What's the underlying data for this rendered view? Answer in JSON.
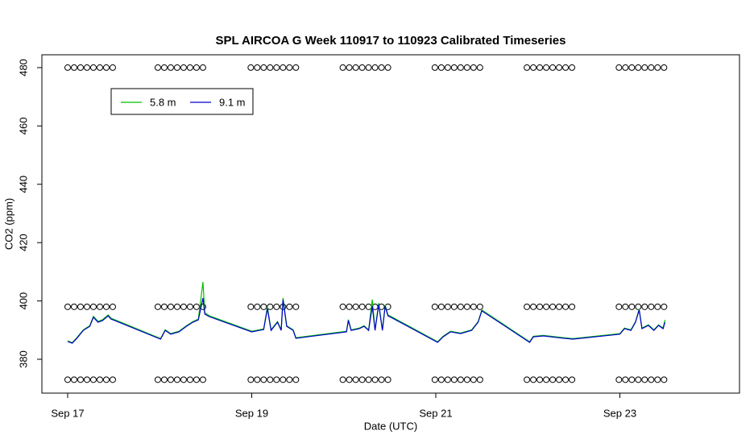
{
  "chart_data": {
    "type": "line",
    "title": "SPL AIRCOA G  Week 110917 to 110923  Calibrated Timeseries",
    "x_label": "Date (UTC)",
    "y_label": "CO2 (ppm)",
    "xlim": [
      16.72,
      24.3
    ],
    "ylim": [
      368.4,
      484.4
    ],
    "xticks": [
      {
        "value": 17,
        "label": "Sep 17"
      },
      {
        "value": 19,
        "label": "Sep 19"
      },
      {
        "value": 21,
        "label": "Sep 21"
      },
      {
        "value": 23,
        "label": "Sep 23"
      }
    ],
    "yticks": [
      380,
      400,
      420,
      440,
      460,
      480
    ],
    "x": [
      17.0,
      17.05,
      17.1,
      17.17,
      17.24,
      17.28,
      17.33,
      17.38,
      17.44,
      17.47,
      17.51,
      18.01,
      18.06,
      18.12,
      18.21,
      18.29,
      18.36,
      18.42,
      18.47,
      18.49,
      18.54,
      19.0,
      19.08,
      19.13,
      19.17,
      19.21,
      19.28,
      19.32,
      19.34,
      19.38,
      19.45,
      19.48,
      20.03,
      20.05,
      20.08,
      20.17,
      20.22,
      20.27,
      20.31,
      20.34,
      20.38,
      20.42,
      20.45,
      20.48,
      20.53,
      21.02,
      21.08,
      21.16,
      21.27,
      21.39,
      21.46,
      21.5,
      22.02,
      22.06,
      22.17,
      22.39,
      22.49,
      23.0,
      23.05,
      23.12,
      23.17,
      23.21,
      23.24,
      23.31,
      23.37,
      23.42,
      23.47,
      23.49
    ],
    "series": [
      {
        "name": "5.8 m",
        "color": "#00c000",
        "values": [
          386.3,
          385.7,
          387.4,
          390.1,
          391.5,
          394.7,
          393.0,
          393.6,
          395.2,
          394.1,
          393.6,
          387.1,
          390.1,
          388.8,
          389.6,
          391.5,
          392.9,
          393.8,
          406.5,
          396.0,
          394.9,
          389.6,
          390.1,
          390.4,
          398.0,
          390.1,
          392.9,
          390.1,
          401.0,
          391.5,
          390.1,
          387.4,
          389.6,
          393.6,
          390.1,
          390.7,
          391.5,
          390.1,
          400.5,
          390.1,
          399.3,
          390.1,
          398.6,
          395.2,
          394.4,
          386.0,
          387.9,
          389.6,
          389.0,
          390.1,
          392.9,
          396.9,
          386.0,
          387.9,
          388.2,
          387.4,
          387.1,
          388.8,
          390.7,
          390.1,
          392.9,
          397.2,
          390.7,
          391.8,
          390.1,
          391.8,
          390.7,
          393.5
        ]
      },
      {
        "name": "9.1 m",
        "color": "#0000c8",
        "values": [
          386.1,
          385.5,
          387.2,
          389.9,
          391.3,
          394.4,
          392.7,
          393.3,
          394.9,
          393.8,
          393.3,
          386.9,
          389.9,
          388.6,
          389.4,
          391.3,
          392.7,
          393.5,
          401.0,
          395.5,
          394.6,
          389.4,
          389.9,
          390.2,
          397.4,
          389.9,
          392.7,
          389.9,
          400.4,
          391.3,
          389.9,
          387.2,
          389.4,
          393.3,
          389.9,
          390.5,
          391.3,
          389.9,
          398.2,
          389.9,
          398.8,
          389.9,
          398.2,
          394.9,
          394.1,
          385.8,
          387.7,
          389.4,
          388.8,
          389.9,
          392.7,
          396.6,
          385.8,
          387.7,
          388.0,
          387.2,
          386.9,
          388.6,
          390.5,
          389.9,
          392.7,
          396.9,
          390.5,
          391.6,
          389.9,
          391.6,
          390.5,
          392.7
        ]
      }
    ],
    "calibration": {
      "levels": [
        480,
        398,
        373
      ],
      "x": [
        17.0,
        17.07,
        17.14,
        17.21,
        17.28,
        17.35,
        17.42,
        17.49,
        17.98,
        18.05,
        18.12,
        18.19,
        18.26,
        18.33,
        18.4,
        18.47,
        18.99,
        19.06,
        19.13,
        19.2,
        19.27,
        19.34,
        19.41,
        19.48,
        19.99,
        20.06,
        20.13,
        20.2,
        20.27,
        20.34,
        20.41,
        20.48,
        20.99,
        21.06,
        21.13,
        21.2,
        21.27,
        21.34,
        21.41,
        21.48,
        21.99,
        22.06,
        22.13,
        22.2,
        22.27,
        22.34,
        22.41,
        22.48,
        22.99,
        23.06,
        23.13,
        23.2,
        23.27,
        23.34,
        23.41,
        23.48
      ]
    },
    "legend": "top-left"
  }
}
